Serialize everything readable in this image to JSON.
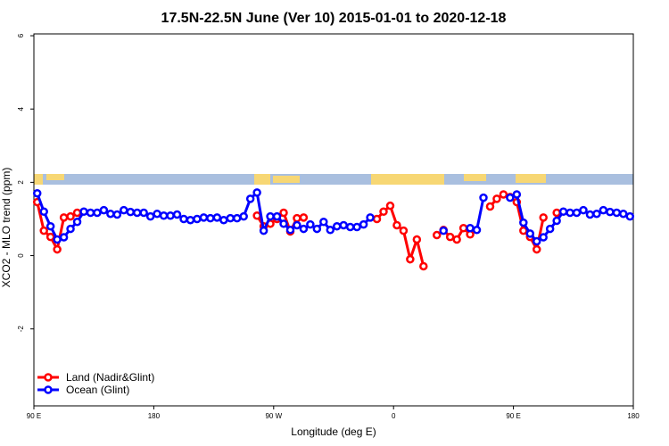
{
  "chart_data": {
    "type": "line",
    "title": "17.5N-22.5N June (Ver 10)   2015-01-01 to 2020-12-18",
    "x_label": "Longitude (deg E)",
    "y_label": "XCO2 - MLO trend (ppm)",
    "x": [
      92.5,
      97.5,
      102.5,
      107.5,
      112.5,
      117.5,
      122.5,
      127.5,
      132.5,
      137.5,
      142.5,
      147.5,
      152.5,
      157.5,
      162.5,
      167.5,
      172.5,
      177.5,
      182.5,
      187.5,
      192.5,
      197.5,
      202.5,
      207.5,
      212.5,
      217.5,
      222.5,
      227.5,
      232.5,
      237.5,
      242.5,
      247.5,
      252.5,
      257.5,
      262.5,
      267.5,
      272.5,
      277.5,
      282.5,
      287.5,
      292.5,
      297.5,
      302.5,
      307.5,
      312.5,
      317.5,
      322.5,
      327.5,
      332.5,
      337.5,
      342.5,
      347.5,
      352.5,
      357.5,
      362.5,
      367.5,
      372.5,
      377.5,
      382.5,
      387.5,
      392.5,
      397.5,
      402.5,
      407.5,
      412.5,
      417.5,
      422.5,
      427.5,
      432.5,
      437.5,
      442.5,
      447.5,
      452.5,
      457.5,
      462.5,
      467.5,
      472.5,
      477.5,
      482.5,
      487.5,
      492.5,
      497.5,
      502.5,
      507.5,
      512.5,
      517.5,
      522.5,
      527.5,
      532.5,
      537.5
    ],
    "series": [
      {
        "name": "Land (Nadir&Glint)",
        "color": "#ff0000",
        "values": [
          1.46,
          0.68,
          0.51,
          0.17,
          1.04,
          1.07,
          1.17,
          null,
          null,
          null,
          null,
          null,
          null,
          null,
          null,
          null,
          null,
          null,
          null,
          null,
          null,
          null,
          null,
          null,
          null,
          null,
          null,
          null,
          null,
          null,
          null,
          null,
          null,
          1.09,
          0.8,
          0.87,
          1.0,
          1.17,
          0.66,
          1.02,
          1.04,
          null,
          null,
          null,
          null,
          null,
          null,
          null,
          null,
          null,
          null,
          1.0,
          1.2,
          1.36,
          0.83,
          0.68,
          -0.1,
          0.44,
          -0.29,
          null,
          0.56,
          0.7,
          0.51,
          0.44,
          0.75,
          0.58,
          null,
          null,
          1.34,
          1.55,
          1.67,
          1.6,
          1.46,
          0.68,
          0.51,
          0.17,
          1.04,
          null,
          1.17,
          null,
          null,
          null,
          null,
          null,
          null,
          null,
          null,
          null,
          null,
          null
        ]
      },
      {
        "name": "Ocean (Glint)",
        "color": "#0000ff",
        "values": [
          1.7,
          1.2,
          0.8,
          0.44,
          0.5,
          0.73,
          0.92,
          1.2,
          1.17,
          1.17,
          1.24,
          1.14,
          1.12,
          1.24,
          1.19,
          1.17,
          1.17,
          1.07,
          1.14,
          1.09,
          1.09,
          1.12,
          1.0,
          0.97,
          1.0,
          1.04,
          1.02,
          1.04,
          0.97,
          1.02,
          1.02,
          1.07,
          1.55,
          1.72,
          0.68,
          1.07,
          1.07,
          0.87,
          0.7,
          0.83,
          0.73,
          0.85,
          0.73,
          0.92,
          0.7,
          0.8,
          0.83,
          0.78,
          0.78,
          0.85,
          1.04,
          null,
          null,
          null,
          null,
          null,
          null,
          null,
          null,
          null,
          null,
          0.68,
          null,
          null,
          null,
          0.75,
          0.7,
          1.58,
          null,
          null,
          null,
          1.58,
          1.67,
          0.9,
          0.6,
          0.39,
          0.5,
          0.73,
          0.95,
          1.2,
          1.17,
          1.17,
          1.24,
          1.12,
          1.14,
          1.24,
          1.19,
          1.17,
          1.14,
          1.07
        ]
      }
    ],
    "xlim": [
      90,
      540
    ],
    "xticks": [
      {
        "value": 90,
        "label": "90 E"
      },
      180,
      {
        "value": 270,
        "label": "90 W"
      },
      {
        "value": 360,
        "label": "0"
      },
      {
        "value": 450,
        "label": "90 E"
      },
      {
        "value": 540,
        "label": "180"
      }
    ],
    "ylim": [
      -4.1,
      6.05
    ],
    "yticks": [
      -2,
      0,
      2,
      4,
      6
    ],
    "legend": "bottomleft"
  }
}
